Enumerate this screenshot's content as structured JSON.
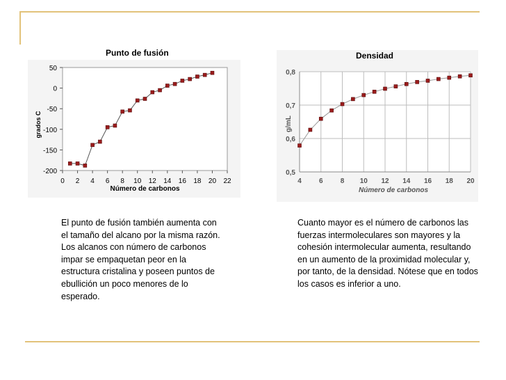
{
  "chart_data": [
    {
      "type": "line",
      "title": "Punto de fusión",
      "xlabel": "Número de carbonos",
      "ylabel": "grados C",
      "xlim": [
        0,
        22
      ],
      "ylim": [
        -200,
        50
      ],
      "xticks": [
        0,
        2,
        4,
        6,
        8,
        10,
        12,
        14,
        16,
        18,
        20,
        22
      ],
      "yticks": [
        50,
        0,
        -50,
        -100,
        -150,
        -200
      ],
      "x": [
        1,
        2,
        3,
        4,
        5,
        6,
        7,
        8,
        9,
        10,
        11,
        12,
        13,
        14,
        15,
        16,
        17,
        18,
        19,
        20
      ],
      "series": [
        {
          "values": [
            -183,
            -183,
            -188,
            -138,
            -130,
            -95,
            -91,
            -57,
            -54,
            -30,
            -26,
            -10,
            -5,
            6,
            10,
            18,
            22,
            28,
            32,
            37
          ]
        }
      ],
      "marker_color": "#9b1c1c",
      "line_color": "#555555",
      "grid": false
    },
    {
      "type": "line",
      "title": "Densidad",
      "xlabel": "Número de carbonos",
      "ylabel": "g/mL",
      "xlim": [
        4,
        20
      ],
      "ylim": [
        0.5,
        0.8
      ],
      "xticks": [
        4,
        6,
        8,
        10,
        12,
        14,
        16,
        18,
        20
      ],
      "yticks": [
        "0,8",
        "0,7",
        "0,6",
        "0,5"
      ],
      "x": [
        4,
        5,
        6,
        7,
        8,
        9,
        10,
        11,
        12,
        13,
        14,
        15,
        16,
        17,
        18,
        19,
        20
      ],
      "series": [
        {
          "values": [
            0.579,
            0.626,
            0.659,
            0.684,
            0.703,
            0.718,
            0.73,
            0.74,
            0.749,
            0.756,
            0.763,
            0.769,
            0.773,
            0.778,
            0.782,
            0.786,
            0.789
          ]
        }
      ],
      "marker_color": "#9b1c1c",
      "line_color": "#999999",
      "grid": true
    }
  ],
  "text": {
    "left_paragraph": "El punto de fusión también aumenta con el tamaño del alcano por la misma razón. Los alcanos con número de carbonos impar se empaquetan peor en la estructura cristalina y poseen puntos de ebullición un poco menores de lo esperado.",
    "right_paragraph": "Cuanto mayor es el número de carbonos las fuerzas intermoleculares son mayores y la cohesión intermolecular aumenta, resultando en un aumento de la proximidad molecular y, por tanto, de la densidad. Nótese que en todos los casos es inferior a uno."
  },
  "colors": {
    "rule": "#e2c27a",
    "chart_background": "#f4f4f4"
  }
}
